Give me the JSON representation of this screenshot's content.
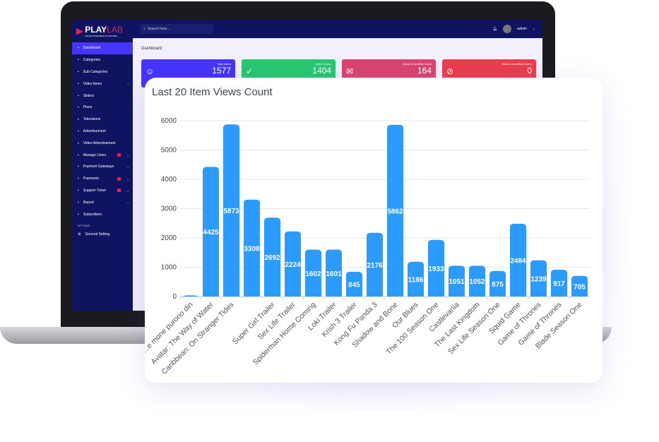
{
  "brand": {
    "name_a": "PLAY",
    "name_b": "LAB",
    "tagline": "MOVIE STREAMING PLATFORM"
  },
  "sidebar": {
    "items": [
      {
        "label": "Dashboard",
        "icon": "home-icon",
        "active": true
      },
      {
        "label": "Categories",
        "icon": "menu-icon"
      },
      {
        "label": "Sub Categories",
        "icon": "bar-chart-icon"
      },
      {
        "label": "Video Items",
        "icon": "video-icon",
        "chevron": true
      },
      {
        "label": "Sliders",
        "icon": "sliders-icon"
      },
      {
        "label": "Plans",
        "icon": "dollar-icon"
      },
      {
        "label": "Televisions",
        "icon": "tv-icon"
      },
      {
        "label": "Advertisement",
        "icon": "ad-icon"
      },
      {
        "label": "Video Advertisement",
        "icon": "video-icon"
      },
      {
        "label": "Manage Users",
        "icon": "users-icon",
        "badge": true,
        "chevron": true
      },
      {
        "label": "Payment Gateways",
        "icon": "card-icon",
        "chevron": true
      },
      {
        "label": "Payments",
        "icon": "payments-icon",
        "badge": true,
        "chevron": true
      },
      {
        "label": "Support Ticket",
        "icon": "ticket-icon",
        "badge": true,
        "chevron": true
      },
      {
        "label": "Report",
        "icon": "list-icon",
        "chevron": true
      },
      {
        "label": "Subscribers",
        "icon": "thumbs-icon"
      }
    ],
    "section": "SETTINGS",
    "settings": [
      {
        "label": "General Setting",
        "icon": "gear-icon"
      }
    ]
  },
  "topbar": {
    "search_placeholder": "Search here...",
    "user": "admin"
  },
  "breadcrumb": "Dashboard",
  "stats": [
    {
      "label": "Total Users",
      "value": "1577",
      "color": "#4634ff",
      "icon": "users-icon",
      "glyph": "☺"
    },
    {
      "label": "Active Users",
      "value": "1404",
      "color": "#28c76f",
      "icon": "user-check-icon",
      "glyph": "✓"
    },
    {
      "label": "Email Unverified Users",
      "value": "164",
      "color": "#d9456f",
      "icon": "envelope-icon",
      "glyph": "✉"
    },
    {
      "label": "Mobile Unverified Users",
      "value": "0",
      "color": "#ea3e4c",
      "icon": "no-message-icon",
      "glyph": "⊘"
    }
  ],
  "chart_data": {
    "type": "bar",
    "title": "Last 20 Item Views Count",
    "categories": [
      "...e mone purono din",
      "Avatar: The Way of Water",
      "Caribbean: On Stranger Tides",
      "",
      "Super Girl Trailer",
      "Sex Life Trailer",
      "Spiderman Home Coming",
      "Loki Trailer",
      "Krish 3 Trailer",
      "Kong Fu Panda 3",
      "Shadow and Bone",
      "Our Blues",
      "The 100 Season One",
      "Castlevania",
      "The Last Kingdom",
      "Sex Life Season One",
      "Squid Game",
      "Game of Thrones",
      "Game of Thrones",
      "Blade Season One"
    ],
    "values": [
      40,
      4425,
      5873,
      3308,
      2692,
      2224,
      1602,
      1601,
      845,
      2176,
      5862,
      1186,
      1933,
      1051,
      1052,
      875,
      2484,
      1239,
      917,
      705
    ],
    "value_labels": [
      "",
      "4425",
      "5873",
      "3308",
      "2692",
      "2224",
      "1602",
      "1601",
      "845",
      "2176",
      "5862",
      "1186",
      "1933",
      "1051",
      "1052",
      "875",
      "2484",
      "1239",
      "917",
      "705"
    ],
    "yticks": [
      0,
      1000,
      2000,
      3000,
      4000,
      5000,
      6000
    ],
    "ylim": [
      0,
      6000
    ],
    "grid": true,
    "color": "#2b9bff"
  }
}
